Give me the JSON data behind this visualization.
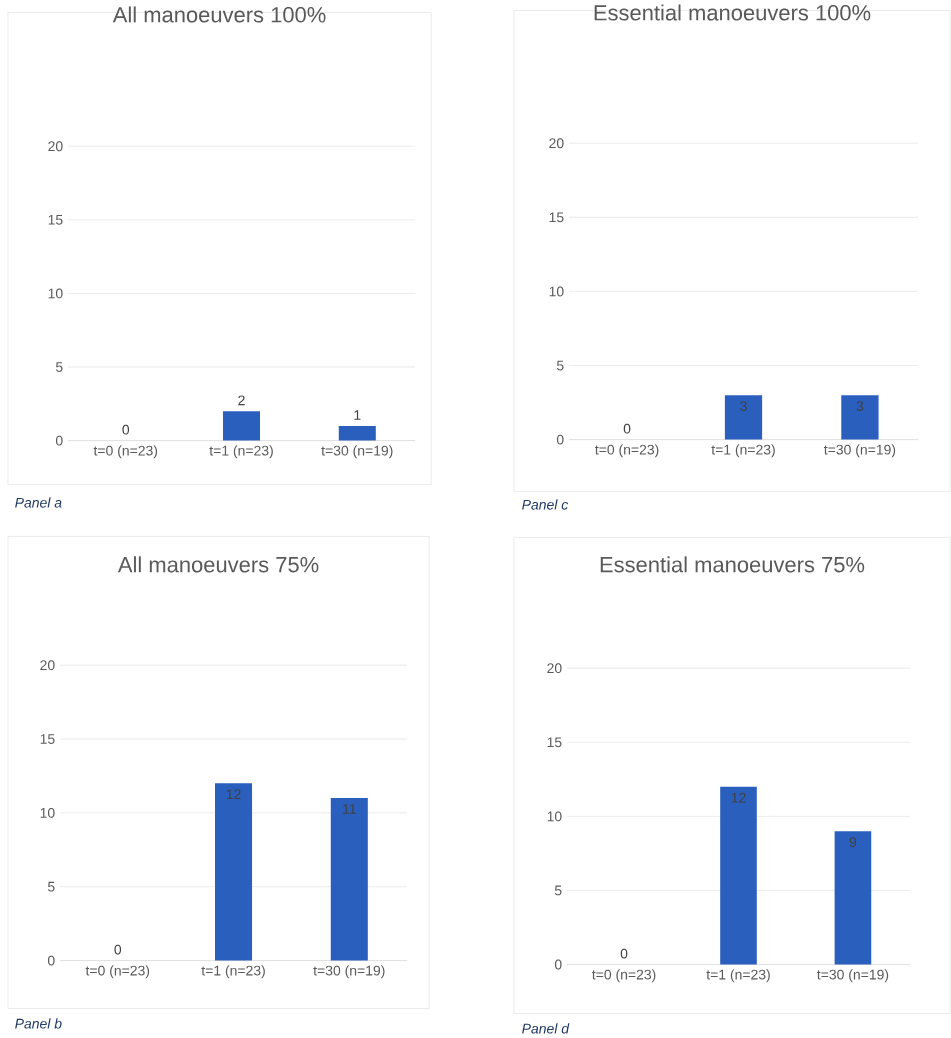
{
  "chart_data": [
    {
      "type": "bar",
      "title": "All manoeuvers 100%",
      "categories": [
        "t=0 (n=23)",
        "t=1 (n=23)",
        "t=30 (n=19)"
      ],
      "values": [
        0,
        2,
        1
      ],
      "color": "#2b5fbd",
      "ylim": [
        0,
        20
      ],
      "yticks": [
        0,
        5,
        10,
        15,
        20
      ],
      "grid": "y",
      "data_labels": true,
      "annotations": [
        "Panel a"
      ]
    },
    {
      "type": "bar",
      "title": "Essential manoeuvers 100%",
      "categories": [
        "t=0 (n=23)",
        "t=1 (n=23)",
        "t=30 (n=19)"
      ],
      "values": [
        0,
        3,
        3
      ],
      "color": "#2b5fbd",
      "ylim": [
        0,
        20
      ],
      "yticks": [
        0,
        5,
        10,
        15,
        20
      ],
      "grid": "y",
      "data_labels": true,
      "annotations": [
        "Panel c"
      ]
    },
    {
      "type": "bar",
      "title": "All manoeuvers 75%",
      "categories": [
        "t=0 (n=23)",
        "t=1 (n=23)",
        "t=30 (n=19)"
      ],
      "values": [
        0,
        12,
        11
      ],
      "color": "#2b5fbd",
      "ylim": [
        0,
        20
      ],
      "yticks": [
        0,
        5,
        10,
        15,
        20
      ],
      "grid": "y",
      "data_labels": true,
      "annotations": [
        "Panel b"
      ]
    },
    {
      "type": "bar",
      "title": "Essential manoeuvers 75%",
      "categories": [
        "t=0 (n=23)",
        "t=1 (n=23)",
        "t=30 (n=19)"
      ],
      "values": [
        0,
        12,
        9
      ],
      "color": "#2b5fbd",
      "ylim": [
        0,
        20
      ],
      "yticks": [
        0,
        5,
        10,
        15,
        20
      ],
      "grid": "y",
      "data_labels": true,
      "annotations": [
        "Panel d"
      ]
    }
  ]
}
